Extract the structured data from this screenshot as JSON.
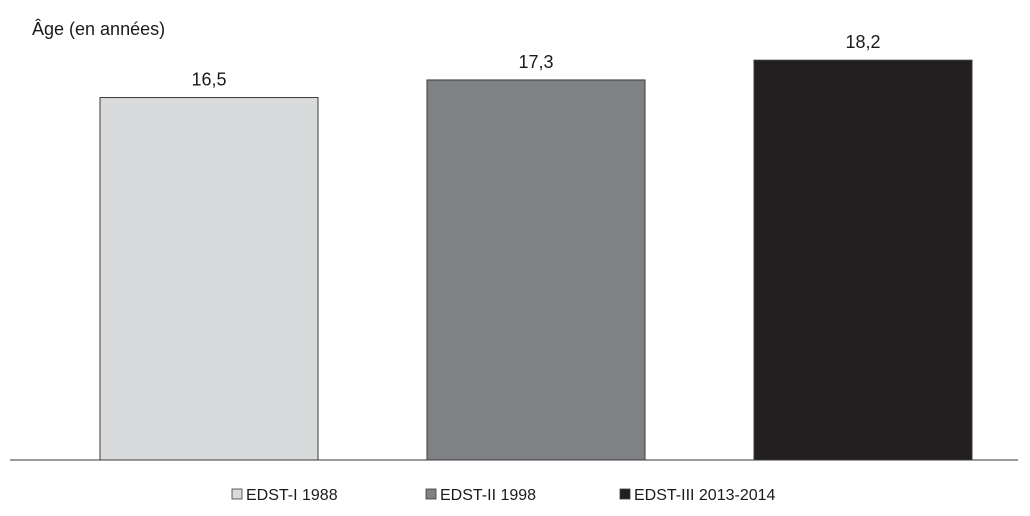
{
  "chart_data": {
    "type": "bar",
    "title": "",
    "xlabel": "",
    "ylabel": "Âge (en années)",
    "categories": [
      "EDST-I 1988",
      "EDST-II 1998",
      "EDST-III 2013-2014"
    ],
    "values": [
      16.5,
      17.3,
      18.2
    ],
    "value_labels": [
      "16,5",
      "17,3",
      "18,2"
    ],
    "colors": [
      "#d9dadb",
      "#808184",
      "#231f20"
    ],
    "ylim": [
      0,
      18.8
    ],
    "grid": false,
    "legend": {
      "position": "bottom",
      "entries": [
        "EDST-I 1988",
        "EDST-II 1998",
        "EDST-III 2013-2014"
      ]
    }
  }
}
